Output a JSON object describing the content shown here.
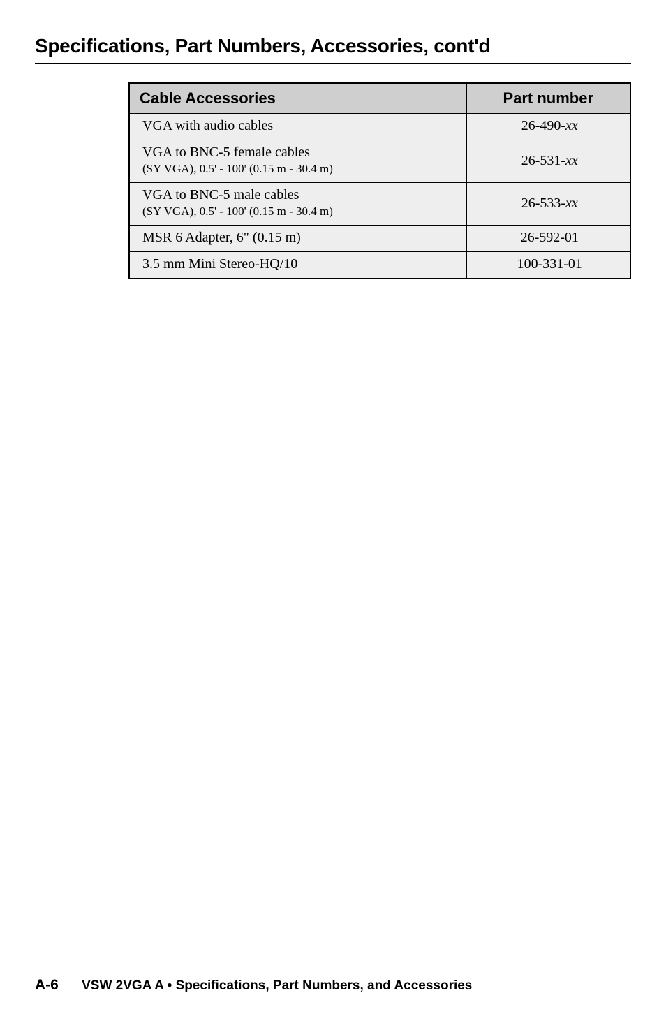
{
  "heading": "Specifications, Part Numbers, Accessories, cont'd",
  "table": {
    "header": {
      "col1": "Cable Accessories",
      "col2": "Part number"
    },
    "rows": [
      {
        "desc": "VGA with audio cables",
        "sub": "",
        "part_prefix": "26-490-",
        "part_suffix": "xx"
      },
      {
        "desc": "VGA to BNC-5 female cables",
        "sub": "(SY VGA), 0.5' - 100' (0.15 m - 30.4 m)",
        "part_prefix": "26-531-",
        "part_suffix": "xx"
      },
      {
        "desc": "VGA to BNC-5 male cables",
        "sub": "(SY VGA), 0.5' - 100' (0.15 m - 30.4 m)",
        "part_prefix": "26-533-",
        "part_suffix": "xx"
      },
      {
        "desc": "MSR 6 Adapter, 6\" (0.15 m)",
        "sub": "",
        "part_prefix": "26-592-01",
        "part_suffix": ""
      },
      {
        "desc": "3.5 mm Mini Stereo-HQ/10",
        "sub": "",
        "part_prefix": "100-331-01",
        "part_suffix": ""
      }
    ]
  },
  "footer": {
    "page": "A-6",
    "product": "VSW 2VGA A",
    "separator": " • ",
    "section": "Specifications, Part Numbers, and Accessories"
  }
}
